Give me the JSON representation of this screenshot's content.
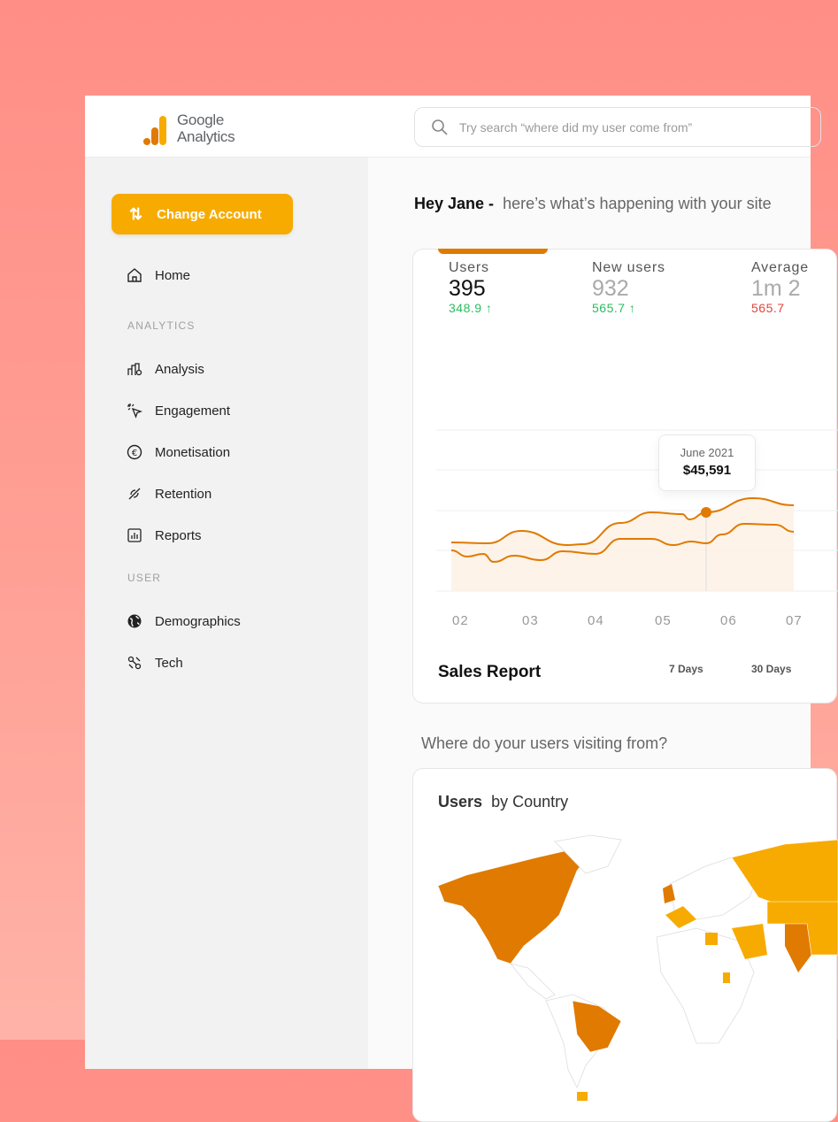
{
  "app": {
    "name_line1": "Google",
    "name_line2": "Analytics"
  },
  "search": {
    "placeholder": "Try search “where did my user come from”"
  },
  "sidebar": {
    "change_account": "Change Account",
    "home": "Home",
    "section_analytics": "ANALYTICS",
    "analytics_items": [
      "Analysis",
      "Engagement",
      "Monetisation",
      "Retention",
      "Reports"
    ],
    "section_user": "USER",
    "user_items": [
      "Demographics",
      "Tech"
    ]
  },
  "greeting": {
    "name": "Hey Jane -",
    "text": "here’s what’s happening with your site"
  },
  "kpis": [
    {
      "label": "Users",
      "value": "395",
      "delta": "348.9 ↑",
      "trend": "up"
    },
    {
      "label": "New users",
      "value": "932",
      "delta": "565.7 ↑",
      "trend": "up"
    },
    {
      "label": "Average",
      "value": "1m 2",
      "delta": "565.7",
      "trend": "down"
    }
  ],
  "chart": {
    "x_ticks": [
      "02",
      "03",
      "04",
      "05",
      "06",
      "07"
    ],
    "tooltip": {
      "label": "June 2021",
      "value": "$45,591"
    },
    "title": "Sales Report",
    "ranges": [
      "7 Days",
      "30 Days"
    ],
    "colors": {
      "line": "#e07a00",
      "accent": "#f7ab00"
    }
  },
  "visiting_question": "Where do your users visiting from?",
  "map": {
    "title_bold": "Users",
    "title_rest": "by Country",
    "colors": {
      "high": "#e07a00",
      "mid": "#f7ab00",
      "none": "#ffffff"
    }
  }
}
